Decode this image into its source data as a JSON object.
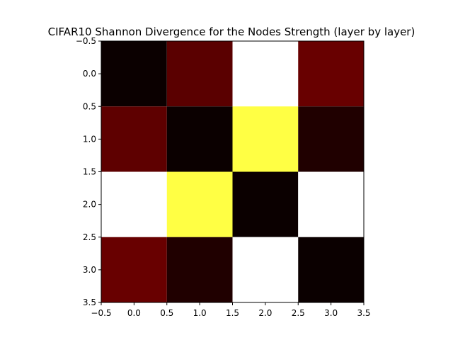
{
  "chart_data": {
    "type": "heatmap",
    "title": "CIFAR10 Shannon Divergence for the Nodes Strength (layer by layer)",
    "xlabel": "",
    "ylabel": "",
    "colormap": "hot",
    "xlim": [
      -0.5,
      3.5
    ],
    "ylim": [
      3.5,
      -0.5
    ],
    "x_ticks": [
      "−0.5",
      "0.0",
      "0.5",
      "1.0",
      "1.5",
      "2.0",
      "2.5",
      "3.0",
      "3.5"
    ],
    "y_ticks": [
      "−0.5",
      "0.0",
      "0.5",
      "1.0",
      "1.5",
      "2.0",
      "2.5",
      "3.0",
      "3.5"
    ],
    "rows": [
      [
        "#0b0000",
        "#5a0000",
        "#ffffff",
        "#680000"
      ],
      [
        "#5e0000",
        "#0b0000",
        "#ffff44",
        "#200000"
      ],
      [
        "#ffffff",
        "#ffff44",
        "#0b0000",
        "#ffffff"
      ],
      [
        "#680000",
        "#200000",
        "#ffffff",
        "#0b0000"
      ]
    ]
  }
}
